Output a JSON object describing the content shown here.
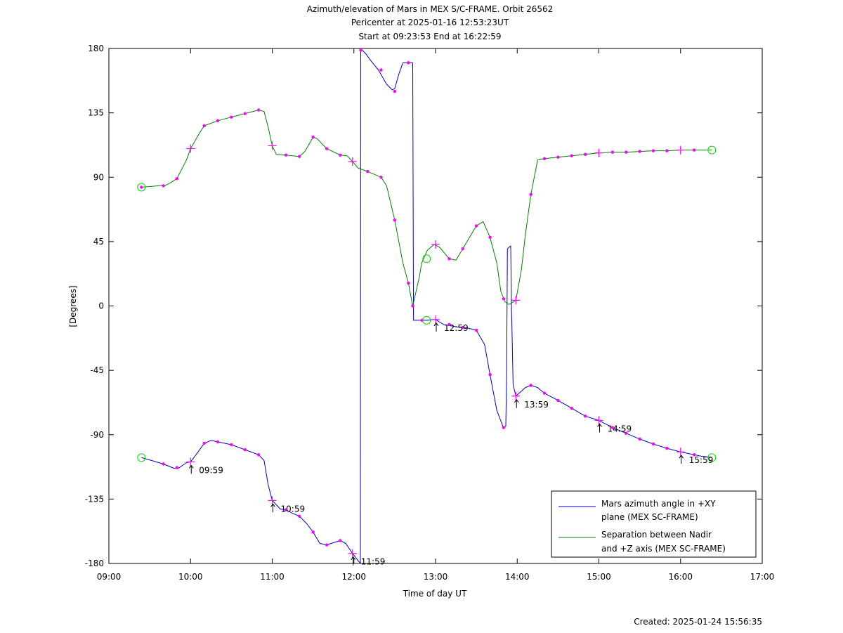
{
  "chart_data": {
    "type": "line",
    "title_lines": [
      "Azimuth/elevation of Mars in MEX S/C-FRAME.  Orbit 26562",
      "Pericenter at 2025-01-16 12:53:23UT",
      "Start at 09:23:53 End at 16:22:59"
    ],
    "xlabel": "Time of day UT",
    "ylabel": "[Degrees]",
    "footer": "Created: 2025-01-24 15:56:35",
    "x_unit": "hours of day",
    "xlim": [
      9,
      17
    ],
    "ylim": [
      -180,
      180
    ],
    "x_ticks": [
      {
        "v": 9,
        "label": "09:00"
      },
      {
        "v": 10,
        "label": "10:00"
      },
      {
        "v": 11,
        "label": "11:00"
      },
      {
        "v": 12,
        "label": "12:00"
      },
      {
        "v": 13,
        "label": "13:00"
      },
      {
        "v": 14,
        "label": "14:00"
      },
      {
        "v": 15,
        "label": "15:00"
      },
      {
        "v": 16,
        "label": "16:00"
      },
      {
        "v": 17,
        "label": "17:00"
      }
    ],
    "y_ticks": [
      {
        "v": 180,
        "label": "180"
      },
      {
        "v": 135,
        "label": "135"
      },
      {
        "v": 90,
        "label": "90"
      },
      {
        "v": 45,
        "label": "45"
      },
      {
        "v": 0,
        "label": "0"
      },
      {
        "v": -45,
        "label": "-45"
      },
      {
        "v": -90,
        "label": "-90"
      },
      {
        "v": -135,
        "label": "-135"
      },
      {
        "v": -180,
        "label": "-180"
      }
    ],
    "legend": {
      "position": "bottom-right",
      "entries": [
        {
          "lines": [
            "Mars azimuth angle in +XY",
            "plane (MEX SC-FRAME)"
          ],
          "color": "#0000cc"
        },
        {
          "lines": [
            "Separation between Nadir",
            "and +Z axis (MEX SC-FRAME)"
          ],
          "color": "#008000"
        }
      ]
    },
    "series": [
      {
        "color": "#0000cc",
        "points": [
          [
            9.398,
            -106
          ],
          [
            9.55,
            -108.5
          ],
          [
            9.667,
            -110.5
          ],
          [
            9.8,
            -113.5
          ],
          [
            9.85,
            -113.5
          ],
          [
            9.95,
            -109.5
          ],
          [
            10.0,
            -109
          ],
          [
            10.08,
            -103
          ],
          [
            10.167,
            -96
          ],
          [
            10.25,
            -94
          ],
          [
            10.333,
            -95
          ],
          [
            10.5,
            -97
          ],
          [
            10.667,
            -100.5
          ],
          [
            10.833,
            -104
          ],
          [
            10.9,
            -108
          ],
          [
            10.95,
            -125
          ],
          [
            11.0,
            -136
          ],
          [
            11.1,
            -142
          ],
          [
            11.167,
            -142.5
          ],
          [
            11.25,
            -145
          ],
          [
            11.333,
            -147
          ],
          [
            11.42,
            -152
          ],
          [
            11.5,
            -158
          ],
          [
            11.583,
            -166
          ],
          [
            11.667,
            -167
          ],
          [
            11.75,
            -165.5
          ],
          [
            11.833,
            -164
          ],
          [
            11.9,
            -166
          ],
          [
            11.983,
            -173
          ],
          [
            12.05,
            -178
          ],
          [
            12.08,
            -179.9
          ],
          [
            12.083,
            179.9
          ],
          [
            12.1,
            179
          ],
          [
            12.15,
            176
          ],
          [
            12.2,
            172
          ],
          [
            12.3,
            165
          ],
          [
            12.4,
            155
          ],
          [
            12.47,
            151
          ],
          [
            12.5,
            152
          ],
          [
            12.55,
            162
          ],
          [
            12.6,
            170
          ],
          [
            12.7,
            170
          ],
          [
            12.72,
            170
          ],
          [
            12.73,
            -10
          ],
          [
            12.8,
            -10
          ],
          [
            12.9,
            -10
          ],
          [
            12.983,
            -9.5
          ],
          [
            13.0,
            -9.5
          ],
          [
            13.1,
            -13
          ],
          [
            13.2,
            -14
          ],
          [
            13.3,
            -15
          ],
          [
            13.4,
            -15.5
          ],
          [
            13.5,
            -17
          ],
          [
            13.6,
            -27
          ],
          [
            13.667,
            -48
          ],
          [
            13.75,
            -73
          ],
          [
            13.83,
            -85
          ],
          [
            13.86,
            -84
          ],
          [
            13.87,
            -50
          ],
          [
            13.88,
            40
          ],
          [
            13.92,
            42
          ],
          [
            13.93,
            0
          ],
          [
            13.95,
            -55
          ],
          [
            13.983,
            -63
          ],
          [
            14.1,
            -57
          ],
          [
            14.167,
            -55.5
          ],
          [
            14.25,
            -57
          ],
          [
            14.333,
            -61
          ],
          [
            14.5,
            -66
          ],
          [
            14.667,
            -71.5
          ],
          [
            14.833,
            -77
          ],
          [
            15.0,
            -80
          ],
          [
            15.167,
            -85
          ],
          [
            15.333,
            -89
          ],
          [
            15.5,
            -93
          ],
          [
            15.667,
            -96.5
          ],
          [
            15.833,
            -99.5
          ],
          [
            16.0,
            -102
          ],
          [
            16.167,
            -104
          ],
          [
            16.25,
            -105
          ],
          [
            16.383,
            -106
          ]
        ]
      },
      {
        "color": "#008000",
        "points": [
          [
            9.398,
            83
          ],
          [
            9.5,
            83.5
          ],
          [
            9.6,
            84
          ],
          [
            9.7,
            84.5
          ],
          [
            9.75,
            86
          ],
          [
            9.833,
            89
          ],
          [
            9.95,
            102
          ],
          [
            10.0,
            110
          ],
          [
            10.1,
            120
          ],
          [
            10.167,
            126
          ],
          [
            10.333,
            129.5
          ],
          [
            10.5,
            132
          ],
          [
            10.667,
            134.5
          ],
          [
            10.833,
            137
          ],
          [
            10.9,
            136
          ],
          [
            10.95,
            125
          ],
          [
            11.0,
            112
          ],
          [
            11.05,
            106
          ],
          [
            11.167,
            105.5
          ],
          [
            11.333,
            104.5
          ],
          [
            11.4,
            108
          ],
          [
            11.5,
            118
          ],
          [
            11.55,
            117
          ],
          [
            11.667,
            110
          ],
          [
            11.833,
            105.5
          ],
          [
            11.917,
            105
          ],
          [
            11.983,
            101
          ],
          [
            12.05,
            96.5
          ],
          [
            12.167,
            94
          ],
          [
            12.333,
            90
          ],
          [
            12.4,
            84
          ],
          [
            12.5,
            60
          ],
          [
            12.6,
            30
          ],
          [
            12.667,
            16
          ],
          [
            12.72,
            0
          ],
          [
            12.8,
            20
          ],
          [
            12.83,
            30
          ],
          [
            12.9,
            39
          ],
          [
            12.983,
            43
          ],
          [
            13.05,
            41
          ],
          [
            13.167,
            33
          ],
          [
            13.25,
            32
          ],
          [
            13.333,
            40
          ],
          [
            13.5,
            56
          ],
          [
            13.583,
            59
          ],
          [
            13.667,
            48
          ],
          [
            13.75,
            30
          ],
          [
            13.8,
            10
          ],
          [
            13.85,
            3
          ],
          [
            13.9,
            1
          ],
          [
            13.983,
            4
          ],
          [
            14.05,
            25
          ],
          [
            14.1,
            50
          ],
          [
            14.167,
            78
          ],
          [
            14.25,
            102
          ],
          [
            14.333,
            103
          ],
          [
            14.5,
            104
          ],
          [
            14.667,
            105
          ],
          [
            14.833,
            106
          ],
          [
            15.0,
            107
          ],
          [
            15.167,
            107.5
          ],
          [
            15.333,
            107.5
          ],
          [
            15.5,
            108
          ],
          [
            15.667,
            108.5
          ],
          [
            15.833,
            108.5
          ],
          [
            16.0,
            109
          ],
          [
            16.167,
            109
          ],
          [
            16.383,
            109
          ]
        ]
      }
    ],
    "markers": {
      "color": "#ff00ff",
      "dots": [
        [
          9.667,
          -110.5
        ],
        [
          9.833,
          -113
        ],
        [
          10.167,
          -96
        ],
        [
          10.333,
          -95
        ],
        [
          10.5,
          -97
        ],
        [
          10.667,
          -100.5
        ],
        [
          10.833,
          -104
        ],
        [
          11.167,
          -142.5
        ],
        [
          11.333,
          -147
        ],
        [
          11.5,
          -158
        ],
        [
          11.667,
          -167
        ],
        [
          11.833,
          -164
        ],
        [
          12.083,
          179
        ],
        [
          12.333,
          165
        ],
        [
          12.5,
          150
        ],
        [
          12.667,
          170
        ],
        [
          12.833,
          -10
        ],
        [
          13.167,
          -13
        ],
        [
          13.333,
          -15
        ],
        [
          13.5,
          -17
        ],
        [
          13.667,
          -48
        ],
        [
          13.833,
          -85
        ],
        [
          14.167,
          -55.5
        ],
        [
          14.333,
          -61
        ],
        [
          14.5,
          -66
        ],
        [
          14.667,
          -71.5
        ],
        [
          14.833,
          -77
        ],
        [
          15.167,
          -85
        ],
        [
          15.333,
          -89
        ],
        [
          15.5,
          -93
        ],
        [
          15.667,
          -96.5
        ],
        [
          15.833,
          -99.5
        ],
        [
          16.167,
          -104
        ],
        [
          9.398,
          83
        ],
        [
          9.667,
          84
        ],
        [
          9.833,
          89
        ],
        [
          10.167,
          126
        ],
        [
          10.333,
          129.5
        ],
        [
          10.5,
          132
        ],
        [
          10.667,
          134.5
        ],
        [
          10.833,
          137
        ],
        [
          11.167,
          105.5
        ],
        [
          11.333,
          104.5
        ],
        [
          11.5,
          118
        ],
        [
          11.667,
          110
        ],
        [
          11.833,
          105.5
        ],
        [
          12.167,
          94
        ],
        [
          12.333,
          90
        ],
        [
          12.5,
          60
        ],
        [
          12.667,
          16
        ],
        [
          12.72,
          0
        ],
        [
          13.167,
          33
        ],
        [
          13.333,
          40
        ],
        [
          13.5,
          56
        ],
        [
          13.667,
          48
        ],
        [
          13.833,
          5
        ],
        [
          14.167,
          78
        ],
        [
          14.333,
          103
        ],
        [
          14.5,
          104
        ],
        [
          14.667,
          105
        ],
        [
          14.833,
          106
        ],
        [
          15.167,
          107.5
        ],
        [
          15.333,
          107.5
        ],
        [
          15.5,
          108
        ],
        [
          15.667,
          108.5
        ],
        [
          15.833,
          108.5
        ],
        [
          16.167,
          109
        ]
      ],
      "crosses": [
        [
          10.0,
          -109
        ],
        [
          11.0,
          -136
        ],
        [
          11.983,
          -173
        ],
        [
          13.0,
          -9.5
        ],
        [
          13.983,
          -63
        ],
        [
          15.0,
          -80
        ],
        [
          16.0,
          -102
        ],
        [
          10.0,
          110
        ],
        [
          11.0,
          112
        ],
        [
          11.983,
          101
        ],
        [
          13.0,
          43
        ],
        [
          13.983,
          4
        ],
        [
          15.0,
          107
        ],
        [
          16.0,
          109
        ]
      ],
      "circle_color": "#00dd00",
      "circles": [
        [
          9.398,
          -106
        ],
        [
          16.383,
          -106
        ],
        [
          9.398,
          83
        ],
        [
          16.383,
          109
        ],
        [
          12.89,
          -10
        ],
        [
          12.89,
          33
        ]
      ]
    },
    "time_annotations": [
      {
        "x": 10.0,
        "y": -109,
        "label": "09:59"
      },
      {
        "x": 11.0,
        "y": -136,
        "label": "10:59"
      },
      {
        "x": 11.983,
        "y": -173,
        "label": "11:59"
      },
      {
        "x": 13.0,
        "y": -9.5,
        "label": "12:59"
      },
      {
        "x": 13.983,
        "y": -63,
        "label": "13:59"
      },
      {
        "x": 15.0,
        "y": -80,
        "label": "14:59"
      },
      {
        "x": 16.0,
        "y": -102,
        "label": "15:59"
      }
    ]
  }
}
